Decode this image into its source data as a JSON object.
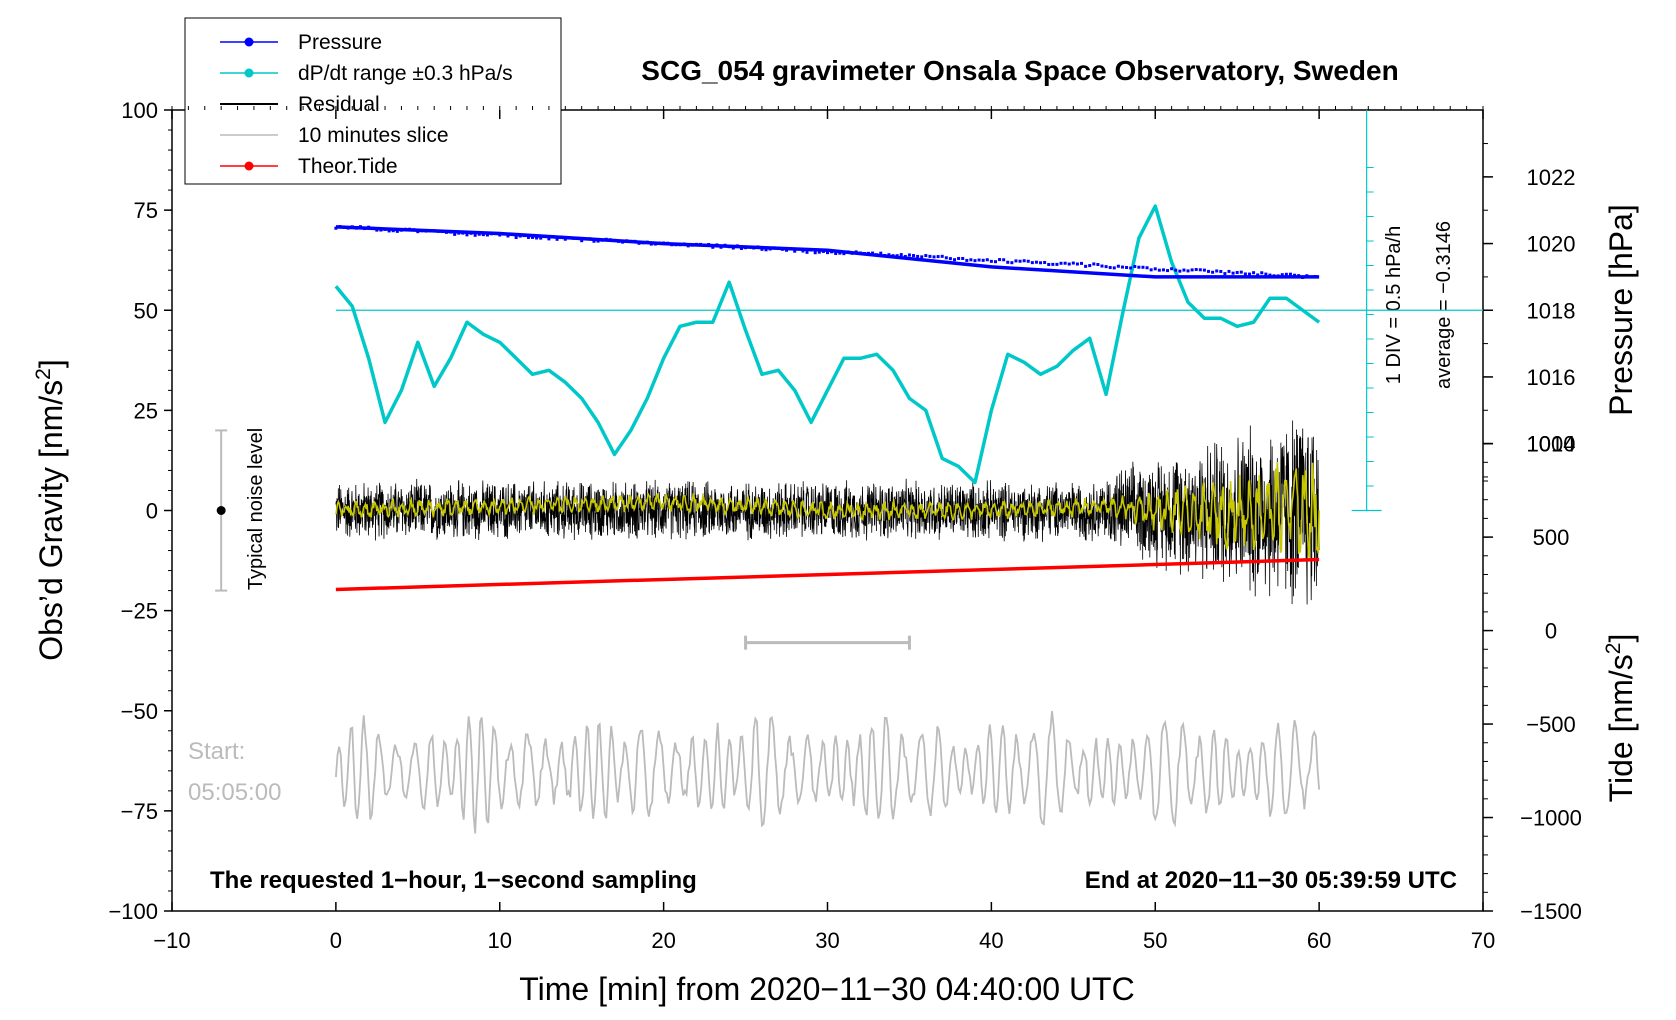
{
  "chart_data": {
    "type": "line",
    "title": "SCG_054 gravimeter Onsala Space Observatory, Sweden",
    "xlabel": "Time [min] from 2020−11−30 04:40:00 UTC",
    "ylabel_left": "Obs’d Gravity [nm/s",
    "ylabel_left_sup": "2",
    "ylabel_left_end": "]",
    "ylabel_right_top": "Pressure [hPa]",
    "ylabel_right_bottom": "Tide [nm/s",
    "ylabel_right_bottom_sup": "2",
    "ylabel_right_bottom_end": "]",
    "xlim": [
      -10,
      70
    ],
    "ylim": [
      -100,
      100
    ],
    "x_ticks": [
      -10,
      0,
      10,
      20,
      30,
      40,
      50,
      60,
      70
    ],
    "x_tick_labels": [
      "−10",
      "0",
      "10",
      "20",
      "30",
      "40",
      "50",
      "60",
      "70"
    ],
    "y_ticks": [
      100,
      75,
      50,
      25,
      0,
      -25,
      -50,
      -75,
      -100
    ],
    "y_tick_labels": [
      "100",
      "75",
      "50",
      "25",
      "0",
      "−25",
      "−50",
      "−75",
      "−100"
    ],
    "pressure_axis": {
      "gravity_equivalent": [
        [
          1014,
          16.7
        ],
        [
          1022,
          83.3
        ]
      ],
      "ticks": [
        1022,
        1020,
        1018,
        1016,
        1014
      ],
      "tick_labels": [
        "1022",
        "1020",
        "1018",
        "1016",
        "1014"
      ]
    },
    "tide_axis": {
      "gravity_equivalent": [
        [
          -1500,
          -100
        ],
        [
          1000,
          16.7
        ]
      ],
      "ticks": [
        1000,
        500,
        0,
        -500,
        -1000,
        -1500
      ],
      "tick_labels": [
        "1000",
        "500",
        "0",
        "−500",
        "−1000",
        "−1500"
      ]
    },
    "legend": [
      {
        "label": "Pressure",
        "color": "#0000ff",
        "marker": true
      },
      {
        "label": "dP/dt range ±0.3 hPa/s",
        "color": "#00c8c8",
        "marker": true
      },
      {
        "label": "Residual",
        "color": "#000000",
        "marker": false
      },
      {
        "label": "10 minutes slice",
        "color": "#bbbbbb",
        "marker": false
      },
      {
        "label": "Theor.Tide",
        "color": "#ff0000",
        "marker": true
      }
    ],
    "series": [
      {
        "name": "Pressure",
        "color": "#0000ff",
        "axis": "pressure",
        "x": [
          0,
          10,
          20,
          30,
          40,
          50,
          60
        ],
        "values": [
          1020.5,
          1020.3,
          1020.0,
          1019.8,
          1019.3,
          1019.0,
          1019.0
        ]
      },
      {
        "name": "dP/dt range ±0.3 hPa/s",
        "color": "#00c8c8",
        "axis": "gravity",
        "x": [
          0,
          1,
          2,
          3,
          4,
          5,
          6,
          7,
          8,
          9,
          10,
          11,
          12,
          13,
          14,
          15,
          16,
          17,
          18,
          19,
          20,
          21,
          22,
          23,
          24,
          25,
          26,
          27,
          28,
          29,
          30,
          31,
          32,
          33,
          34,
          35,
          36,
          37,
          38,
          39,
          40,
          41,
          42,
          43,
          44,
          45,
          46,
          47,
          48,
          49,
          50,
          51,
          52,
          53,
          54,
          55,
          56,
          57,
          58,
          59,
          60
        ],
        "values": [
          56,
          51,
          38,
          22,
          30,
          42,
          31,
          38,
          47,
          44,
          42,
          38,
          34,
          35,
          32,
          28,
          22,
          14,
          20,
          28,
          38,
          46,
          47,
          47,
          57,
          45,
          34,
          35,
          30,
          22,
          30,
          38,
          38,
          39,
          35,
          28,
          25,
          13,
          11,
          7,
          25,
          39,
          37,
          34,
          36,
          40,
          43,
          29,
          49,
          68,
          76,
          62,
          52,
          48,
          48,
          46,
          47,
          53,
          53,
          50,
          47
        ]
      },
      {
        "name": "Residual smoothed",
        "color": "#c8c800",
        "axis": "gravity",
        "x": [
          0,
          10,
          20,
          30,
          40,
          47,
          50,
          53,
          56,
          58,
          60
        ],
        "values": [
          0,
          1,
          2,
          0,
          0,
          1,
          0,
          -1,
          0,
          1,
          0
        ]
      },
      {
        "name": "Theor.Tide",
        "color": "#ff0000",
        "axis": "tide",
        "x": [
          0,
          60
        ],
        "values": [
          220,
          380
        ]
      }
    ],
    "residual_envelope_nm_s2": {
      "early": 15,
      "late": 30
    },
    "slice_marker": {
      "x_start": 25,
      "x_end": 35,
      "y": -33
    },
    "noise_level": {
      "x": -7,
      "center": 0,
      "low": -20,
      "high": 20,
      "label": "Typical noise level"
    },
    "reference_line": {
      "y": 50,
      "label_1": "1 DIV = 0.5 hPa/h",
      "label_2": "average = −0.3146"
    },
    "annotations": {
      "bottom_left": "The requested 1−hour, 1−second sampling",
      "bottom_right": "End at 2020−11−30 05:39:59 UTC",
      "start_label": "Start:",
      "start_time": "05:05:00"
    }
  }
}
